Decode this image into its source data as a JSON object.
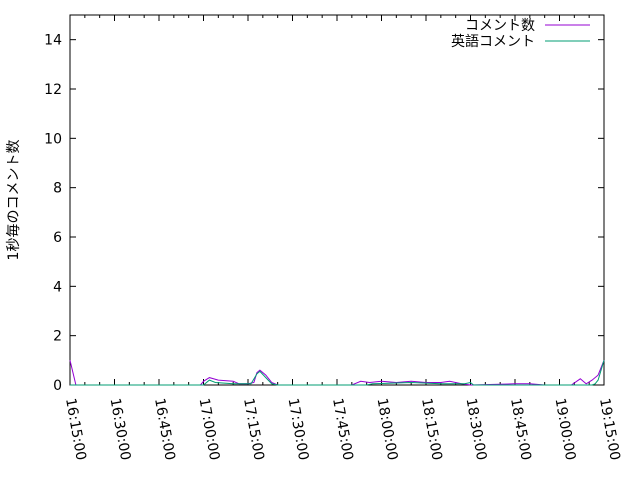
{
  "chart_data": {
    "type": "line",
    "title": "",
    "xlabel": "",
    "ylabel": "1秒毎のコメント数",
    "xlim": [
      "16:15:00",
      "19:15:00"
    ],
    "ylim": [
      0,
      15
    ],
    "x_ticks": [
      "16:15:00",
      "16:30:00",
      "16:45:00",
      "17:00:00",
      "17:15:00",
      "17:30:00",
      "17:45:00",
      "18:00:00",
      "18:15:00",
      "18:30:00",
      "18:45:00",
      "19:00:00",
      "19:15:00"
    ],
    "y_ticks": [
      0,
      2,
      4,
      6,
      8,
      10,
      12,
      14
    ],
    "grid": false,
    "legend_position": "top-right",
    "series": [
      {
        "name": "コメント数",
        "color": "#9400d3",
        "points": [
          [
            "16:15",
            1.0
          ],
          [
            "16:17",
            0
          ],
          [
            "16:59",
            0
          ],
          [
            "17:00",
            0.15
          ],
          [
            "17:02",
            0.3
          ],
          [
            "17:05",
            0.2
          ],
          [
            "17:10",
            0.15
          ],
          [
            "17:12",
            0.05
          ],
          [
            "17:15",
            0.05
          ],
          [
            "17:17",
            0.1
          ],
          [
            "17:18",
            0.5
          ],
          [
            "17:19",
            0.6
          ],
          [
            "17:21",
            0.4
          ],
          [
            "17:23",
            0.1
          ],
          [
            "17:25",
            0
          ],
          [
            "17:50",
            0
          ],
          [
            "17:53",
            0.15
          ],
          [
            "17:56",
            0.1
          ],
          [
            "18:00",
            0.15
          ],
          [
            "18:05",
            0.1
          ],
          [
            "18:10",
            0.15
          ],
          [
            "18:15",
            0.1
          ],
          [
            "18:20",
            0.1
          ],
          [
            "18:23",
            0.15
          ],
          [
            "18:27",
            0.05
          ],
          [
            "18:30",
            0
          ],
          [
            "18:45",
            0.05
          ],
          [
            "18:50",
            0.05
          ],
          [
            "18:55",
            0
          ],
          [
            "19:04",
            0
          ],
          [
            "19:07",
            0.25
          ],
          [
            "19:09",
            0.05
          ],
          [
            "19:11",
            0.2
          ],
          [
            "19:13",
            0.4
          ],
          [
            "19:15",
            1.0
          ]
        ]
      },
      {
        "name": "英語コメント",
        "color": "#009e73",
        "points": [
          [
            "16:15",
            0
          ],
          [
            "17:00",
            0
          ],
          [
            "17:02",
            0.2
          ],
          [
            "17:04",
            0.1
          ],
          [
            "17:10",
            0.05
          ],
          [
            "17:16",
            0.05
          ],
          [
            "17:18",
            0.45
          ],
          [
            "17:19",
            0.55
          ],
          [
            "17:21",
            0.3
          ],
          [
            "17:23",
            0.05
          ],
          [
            "17:25",
            0
          ],
          [
            "17:55",
            0
          ],
          [
            "17:57",
            0.05
          ],
          [
            "18:10",
            0.1
          ],
          [
            "18:20",
            0.05
          ],
          [
            "18:28",
            0.05
          ],
          [
            "18:30",
            0.1
          ],
          [
            "18:31",
            0
          ],
          [
            "19:11",
            0
          ],
          [
            "19:12",
            0.05
          ],
          [
            "19:13",
            0.2
          ],
          [
            "19:15",
            1.0
          ]
        ]
      }
    ]
  }
}
